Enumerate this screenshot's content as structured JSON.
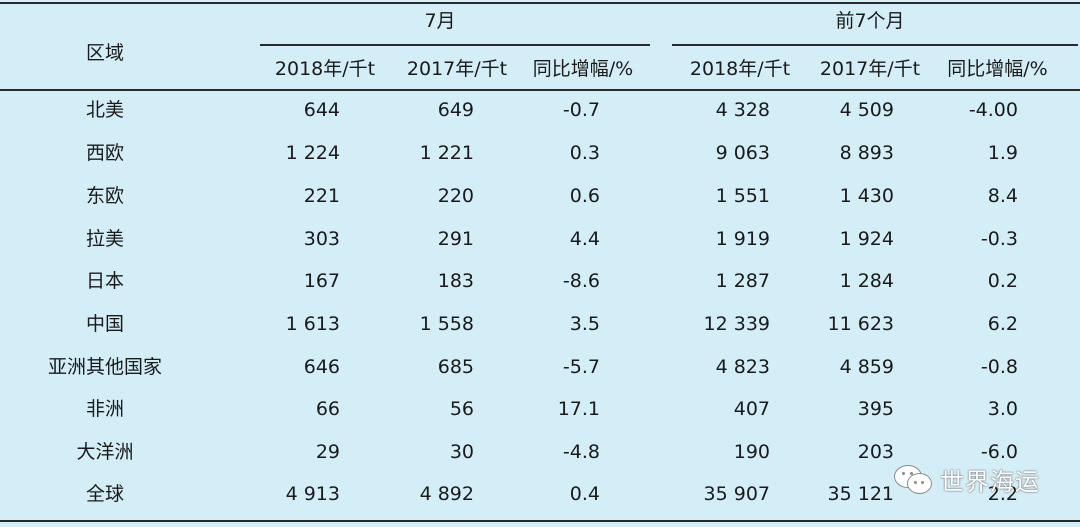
{
  "header": {
    "region_label": "区域",
    "group_july": "7月",
    "group_first7": "前7个月",
    "col_2018": "2018年/千t",
    "col_2017": "2017年/千t",
    "col_yoy": "同比增幅/%"
  },
  "rows": [
    {
      "region": "北美",
      "j2018": "644",
      "j2017": "649",
      "jyoy": "-0.7",
      "f2018": "4 328",
      "f2017": "4 509",
      "fyoy": "-4.00"
    },
    {
      "region": "西欧",
      "j2018": "1 224",
      "j2017": "1 221",
      "jyoy": "0.3",
      "f2018": "9 063",
      "f2017": "8 893",
      "fyoy": "1.9"
    },
    {
      "region": "东欧",
      "j2018": "221",
      "j2017": "220",
      "jyoy": "0.6",
      "f2018": "1 551",
      "f2017": "1 430",
      "fyoy": "8.4"
    },
    {
      "region": "拉美",
      "j2018": "303",
      "j2017": "291",
      "jyoy": "4.4",
      "f2018": "1 919",
      "f2017": "1 924",
      "fyoy": "-0.3"
    },
    {
      "region": "日本",
      "j2018": "167",
      "j2017": "183",
      "jyoy": "-8.6",
      "f2018": "1 287",
      "f2017": "1 284",
      "fyoy": "0.2"
    },
    {
      "region": "中国",
      "j2018": "1 613",
      "j2017": "1 558",
      "jyoy": "3.5",
      "f2018": "12 339",
      "f2017": "11 623",
      "fyoy": "6.2"
    },
    {
      "region": "亚洲其他国家",
      "j2018": "646",
      "j2017": "685",
      "jyoy": "-5.7",
      "f2018": "4 823",
      "f2017": "4 859",
      "fyoy": "-0.8"
    },
    {
      "region": "非洲",
      "j2018": "66",
      "j2017": "56",
      "jyoy": "17.1",
      "f2018": "407",
      "f2017": "395",
      "fyoy": "3.0"
    },
    {
      "region": "大洋洲",
      "j2018": "29",
      "j2017": "30",
      "jyoy": "-4.8",
      "f2018": "190",
      "f2017": "203",
      "fyoy": "-6.0"
    },
    {
      "region": "全球",
      "j2018": "4 913",
      "j2017": "4 892",
      "jyoy": "0.4",
      "f2018": "35 907",
      "f2017": "35 121",
      "fyoy": "2.2"
    }
  ],
  "watermark": {
    "text": "世界海运",
    "icon": "wechat-icon"
  },
  "colors": {
    "background": "#d4eef8",
    "rule": "#2a2a2a"
  }
}
